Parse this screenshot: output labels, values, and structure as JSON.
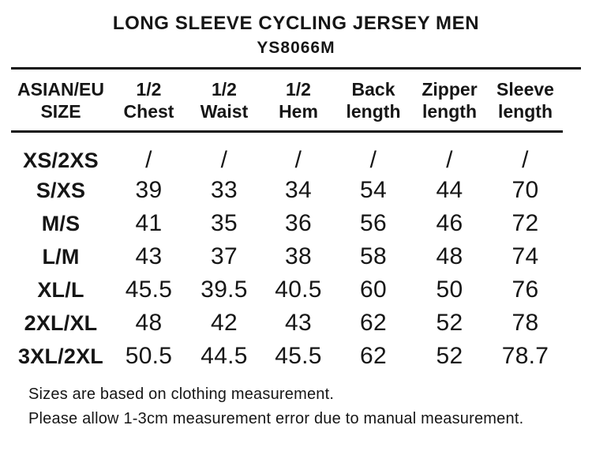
{
  "page": {
    "background_color": "#ffffff",
    "text_color": "#161616",
    "rule_color": "#131313"
  },
  "chart_data": {
    "type": "table",
    "title": "LONG SLEEVE CYCLING JERSEY MEN",
    "subtitle": "YS8066M",
    "columns": [
      {
        "line1": "ASIAN/EU",
        "line2": "SIZE"
      },
      {
        "line1": "1/2",
        "line2": "Chest"
      },
      {
        "line1": "1/2",
        "line2": "Waist"
      },
      {
        "line1": "1/2",
        "line2": "Hem"
      },
      {
        "line1": "Back",
        "line2": "length"
      },
      {
        "line1": "Zipper",
        "line2": "length"
      },
      {
        "line1": "Sleeve",
        "line2": "length"
      }
    ],
    "rows": [
      {
        "size": "XS/2XS",
        "values": [
          "/",
          "/",
          "/",
          "/",
          "/",
          "/"
        ]
      },
      {
        "size": "S/XS",
        "values": [
          "39",
          "33",
          "34",
          "54",
          "44",
          "70"
        ]
      },
      {
        "size": "M/S",
        "values": [
          "41",
          "35",
          "36",
          "56",
          "46",
          "72"
        ]
      },
      {
        "size": "L/M",
        "values": [
          "43",
          "37",
          "38",
          "58",
          "48",
          "74"
        ]
      },
      {
        "size": "XL/L",
        "values": [
          "45.5",
          "39.5",
          "40.5",
          "60",
          "50",
          "76"
        ]
      },
      {
        "size": "2XL/XL",
        "values": [
          "48",
          "42",
          "43",
          "62",
          "52",
          "78"
        ]
      },
      {
        "size": "3XL/2XL",
        "values": [
          "50.5",
          "44.5",
          "45.5",
          "62",
          "52",
          "78.7"
        ]
      }
    ],
    "notes": [
      "Sizes are based on clothing measurement.",
      "Please allow 1-3cm measurement error due to manual measurement."
    ]
  }
}
